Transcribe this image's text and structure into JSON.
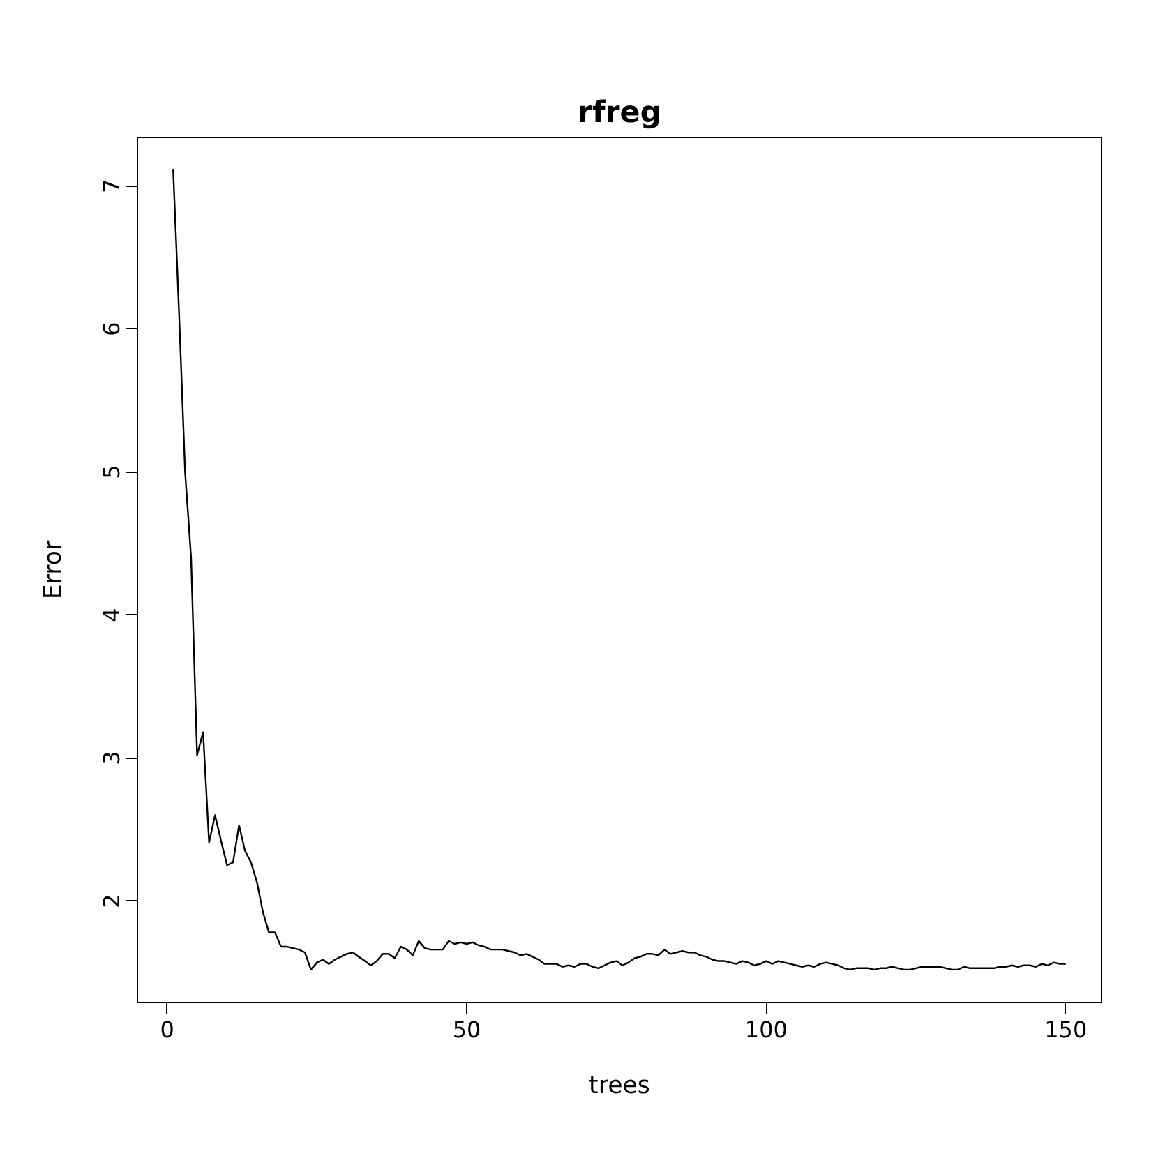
{
  "chart_data": {
    "type": "line",
    "title": "rfreg",
    "xlabel": "trees",
    "ylabel": "Error",
    "x": [
      1,
      2,
      3,
      4,
      5,
      6,
      7,
      8,
      9,
      10,
      11,
      12,
      13,
      14,
      15,
      16,
      17,
      18,
      19,
      20,
      21,
      22,
      23,
      24,
      25,
      26,
      27,
      28,
      29,
      30,
      31,
      32,
      33,
      34,
      35,
      36,
      37,
      38,
      39,
      40,
      41,
      42,
      43,
      44,
      45,
      46,
      47,
      48,
      49,
      50,
      51,
      52,
      53,
      54,
      55,
      56,
      57,
      58,
      59,
      60,
      61,
      62,
      63,
      64,
      65,
      66,
      67,
      68,
      69,
      70,
      71,
      72,
      73,
      74,
      75,
      76,
      77,
      78,
      79,
      80,
      81,
      82,
      83,
      84,
      85,
      86,
      87,
      88,
      89,
      90,
      91,
      92,
      93,
      94,
      95,
      96,
      97,
      98,
      99,
      100,
      101,
      102,
      103,
      104,
      105,
      106,
      107,
      108,
      109,
      110,
      111,
      112,
      113,
      114,
      115,
      116,
      117,
      118,
      119,
      120,
      121,
      122,
      123,
      124,
      125,
      126,
      127,
      128,
      129,
      130,
      131,
      132,
      133,
      134,
      135,
      136,
      137,
      138,
      139,
      140,
      141,
      142,
      143,
      144,
      145,
      146,
      147,
      148,
      149,
      150
    ],
    "series": [
      {
        "color": "#000000",
        "values": [
          7.12,
          6.1,
          5.0,
          4.4,
          3.02,
          3.18,
          2.41,
          2.6,
          2.42,
          2.25,
          2.27,
          2.53,
          2.35,
          2.27,
          2.13,
          1.92,
          1.78,
          1.78,
          1.68,
          1.68,
          1.67,
          1.66,
          1.64,
          1.52,
          1.57,
          1.59,
          1.56,
          1.59,
          1.61,
          1.63,
          1.64,
          1.61,
          1.58,
          1.55,
          1.58,
          1.63,
          1.63,
          1.6,
          1.68,
          1.66,
          1.62,
          1.72,
          1.67,
          1.66,
          1.66,
          1.66,
          1.72,
          1.7,
          1.71,
          1.7,
          1.71,
          1.69,
          1.68,
          1.66,
          1.66,
          1.66,
          1.65,
          1.64,
          1.62,
          1.63,
          1.61,
          1.59,
          1.56,
          1.56,
          1.56,
          1.54,
          1.55,
          1.54,
          1.56,
          1.56,
          1.54,
          1.53,
          1.55,
          1.57,
          1.58,
          1.55,
          1.57,
          1.6,
          1.61,
          1.63,
          1.63,
          1.62,
          1.66,
          1.63,
          1.64,
          1.65,
          1.64,
          1.64,
          1.62,
          1.61,
          1.59,
          1.58,
          1.58,
          1.57,
          1.56,
          1.58,
          1.57,
          1.55,
          1.56,
          1.58,
          1.56,
          1.58,
          1.57,
          1.56,
          1.55,
          1.54,
          1.55,
          1.54,
          1.56,
          1.57,
          1.56,
          1.55,
          1.53,
          1.52,
          1.53,
          1.53,
          1.53,
          1.52,
          1.53,
          1.53,
          1.54,
          1.53,
          1.52,
          1.52,
          1.53,
          1.54,
          1.54,
          1.54,
          1.54,
          1.53,
          1.52,
          1.52,
          1.54,
          1.53,
          1.53,
          1.53,
          1.53,
          1.53,
          1.54,
          1.54,
          1.55,
          1.54,
          1.55,
          1.55,
          1.54,
          1.56,
          1.55,
          1.57,
          1.56,
          1.56
        ]
      }
    ],
    "xlim": [
      -4.96,
      155.96
    ],
    "ylim": [
      1.29,
      7.34
    ],
    "xticks": [
      0,
      50,
      100,
      150
    ],
    "yticks": [
      2,
      3,
      4,
      5,
      6,
      7
    ],
    "grid": false,
    "marker": "none",
    "line_style": "solid"
  }
}
